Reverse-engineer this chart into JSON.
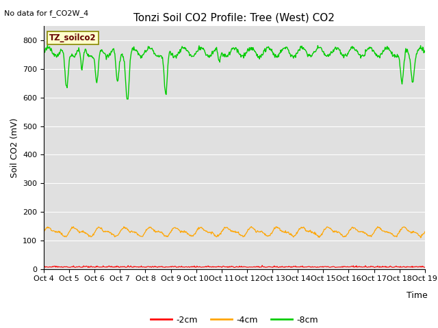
{
  "title": "Tonzi Soil CO2 Profile: Tree (West) CO2",
  "no_data_label": "No data for f_CO2W_4",
  "ylabel": "Soil CO2 (mV)",
  "xlabel": "Time",
  "ylim": [
    0,
    850
  ],
  "bg_color": "#e0e0e0",
  "fig_color": "#ffffff",
  "legend_labels": [
    "-2cm",
    "-4cm",
    "-8cm"
  ],
  "legend_colors": [
    "#ff0000",
    "#ffa500",
    "#00cc00"
  ],
  "tz_label": "TZ_soilco2",
  "xtick_labels": [
    "Oct 4",
    "Oct 5",
    "Oct 6",
    "Oct 7",
    "Oct 8",
    "Oct 9",
    "Oct 10",
    "Oct 11",
    "Oct 12",
    "Oct 13",
    "Oct 14",
    "Oct 15",
    "Oct 16",
    "Oct 17",
    "Oct 18",
    "Oct 19"
  ],
  "ytick_vals": [
    0,
    100,
    200,
    300,
    400,
    500,
    600,
    700,
    800
  ],
  "line_red_base": 5,
  "line_orange_base": 130,
  "line_green_base": 760,
  "title_fontsize": 11,
  "axis_fontsize": 9,
  "tick_fontsize": 8
}
